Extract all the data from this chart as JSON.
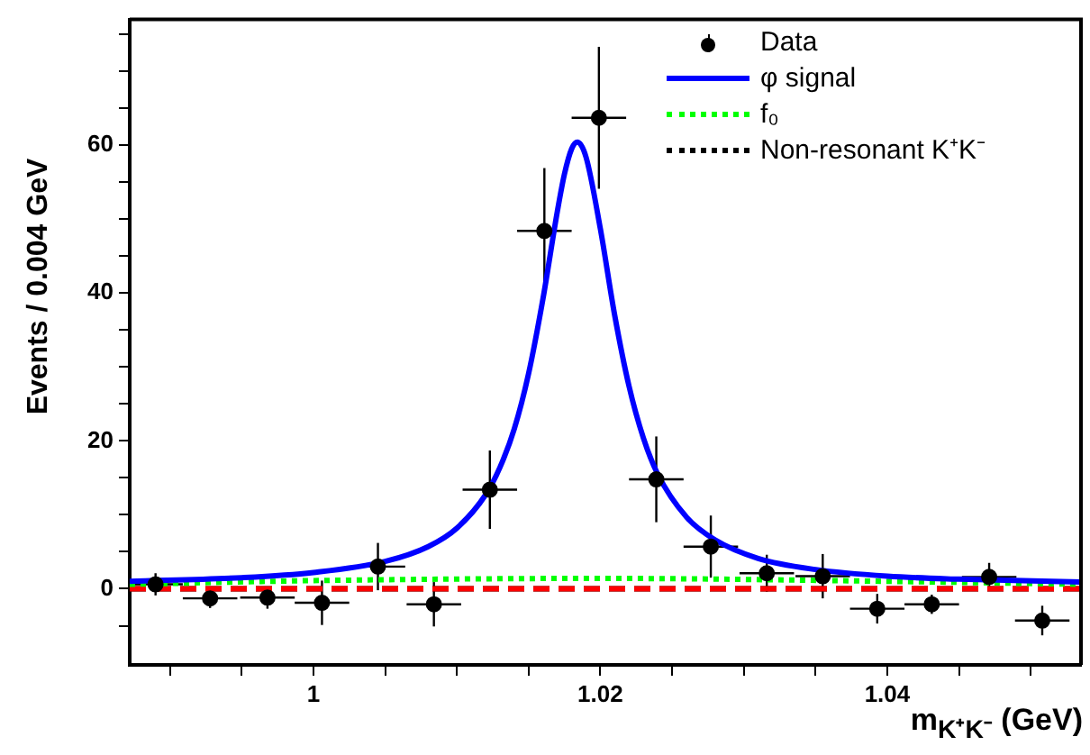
{
  "chart_data": {
    "type": "line",
    "xlabel": "m$_{K⁺K⁻}$ (GeV)",
    "ylabel": "Events / 0.004 GeV",
    "xlim": [
      0.9872,
      1.0535
    ],
    "ylim": [
      -10.3,
      77
    ],
    "xticks": [
      {
        "value": 0.99,
        "label": null
      },
      {
        "value": 0.995,
        "label": null
      },
      1,
      {
        "value": 1.005,
        "label": null
      },
      {
        "value": 1.01,
        "label": null
      },
      {
        "value": 1.015,
        "label": null
      },
      1.02,
      {
        "value": 1.025,
        "label": null
      },
      {
        "value": 1.03,
        "label": null
      },
      {
        "value": 1.035,
        "label": null
      },
      1.04,
      {
        "value": 1.045,
        "label": null
      },
      {
        "value": 1.05,
        "label": null
      }
    ],
    "yticks": [
      {
        "value": -5,
        "label": null
      },
      0,
      {
        "value": 5,
        "label": null
      },
      {
        "value": 10,
        "label": null
      },
      {
        "value": 15,
        "label": null
      },
      20,
      {
        "value": 25,
        "label": null
      },
      {
        "value": 30,
        "label": null
      },
      {
        "value": 35,
        "label": null
      },
      40,
      {
        "value": 45,
        "label": null
      },
      {
        "value": 50,
        "label": null
      },
      {
        "value": 55,
        "label": null
      },
      60,
      {
        "value": 65,
        "label": null
      },
      {
        "value": 70,
        "label": null
      },
      {
        "value": 75,
        "label": null
      }
    ],
    "grid": false,
    "legend": "top right",
    "series": [
      {
        "name": "Data",
        "type": "scatter",
        "marker": "circle",
        "color": "#000000",
        "x": [
          0.989,
          0.9928,
          0.9968,
          1.0006,
          1.0045,
          1.0084,
          1.0123,
          1.0161,
          1.0199,
          1.0239,
          1.0277,
          1.0316,
          1.0355,
          1.0393,
          1.0431,
          1.0471,
          1.0508
        ],
        "values": [
          0.6,
          -1.3,
          -1.2,
          -1.9,
          3.0,
          -2.1,
          13.4,
          48.4,
          63.7,
          14.8,
          5.7,
          2.1,
          1.7,
          -2.7,
          -2.1,
          1.6,
          -4.3
        ],
        "errors": [
          1.5,
          1.3,
          1.5,
          3,
          3.2,
          3,
          5.3,
          8.5,
          9.6,
          5.8,
          4.2,
          2.5,
          3,
          2,
          1.3,
          1.9,
          2
        ],
        "xerrors": [
          0.0019,
          0.0019,
          0.0019,
          0.0019,
          0.0019,
          0.0019,
          0.0019,
          0.0019,
          0.0019,
          0.0019,
          0.0019,
          0.0019,
          0.0019,
          0.0019,
          0.0019,
          0.0019,
          0.0019
        ]
      },
      {
        "name": "φ signal",
        "type": "line",
        "line_style": "solid",
        "color": "#0000ff",
        "x": [
          0.9872,
          0.995,
          1.0,
          1.005,
          1.008,
          1.01,
          1.012,
          1.013,
          1.014,
          1.015,
          1.016,
          1.017,
          1.0175,
          1.018,
          1.0184,
          1.019,
          1.02,
          1.021,
          1.022,
          1.023,
          1.024,
          1.026,
          1.028,
          1.031,
          1.035,
          1.04,
          1.045,
          1.0535
        ],
        "values": [
          1.0,
          1.5,
          2.2,
          3.7,
          5.7,
          8.2,
          12.7,
          16.4,
          21.6,
          29.1,
          39.2,
          51.0,
          56.1,
          59.5,
          60.4,
          58.4,
          48.7,
          37.0,
          27.4,
          20.4,
          15.5,
          9.7,
          6.6,
          4.1,
          2.6,
          1.7,
          1.3,
          0.9
        ]
      },
      {
        "name": "f₀",
        "type": "line",
        "line_style": "dotted",
        "color": "#00ff00",
        "x": [
          0.9872,
          1.0,
          1.02,
          1.04,
          1.0535
        ],
        "values": [
          0.6,
          1.1,
          1.4,
          1.0,
          0.6
        ]
      },
      {
        "type": "line",
        "line_style": "dashed",
        "color": "#ff0000",
        "x": [
          0.9872,
          1.0535
        ],
        "values": [
          0,
          0
        ]
      },
      {
        "name": "Non-resonant K⁺K⁻",
        "type": "line",
        "line_style": "dashed",
        "color": "#000000",
        "x": [
          0.9872,
          1.0535
        ],
        "values": [
          0,
          0
        ]
      }
    ]
  }
}
